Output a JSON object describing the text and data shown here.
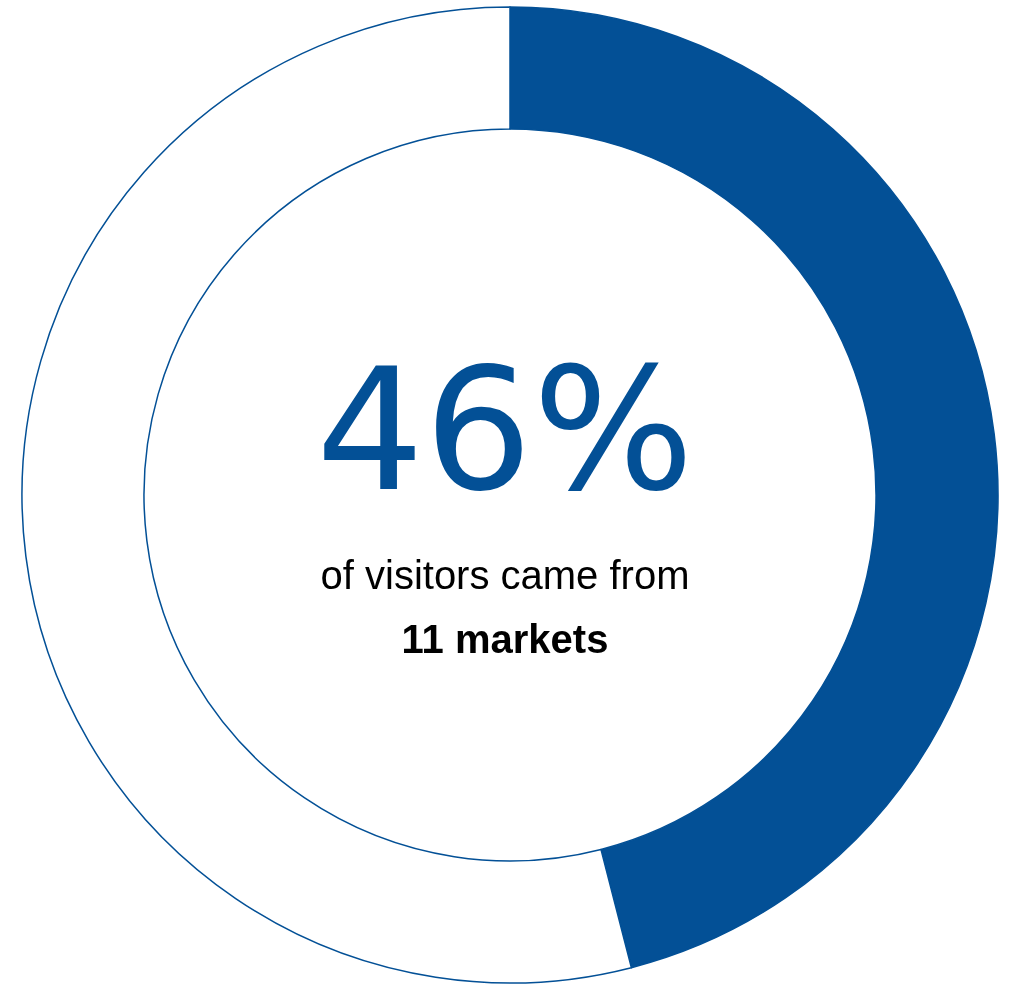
{
  "chart_data": {
    "type": "donut",
    "categories": [
      null,
      null
    ],
    "values": [
      46,
      54
    ],
    "colors": [
      "#035096",
      "#ffffff"
    ],
    "value_labels": [
      "46%",
      null
    ],
    "annotations": [
      "of visitors came from",
      "11 markets"
    ]
  }
}
